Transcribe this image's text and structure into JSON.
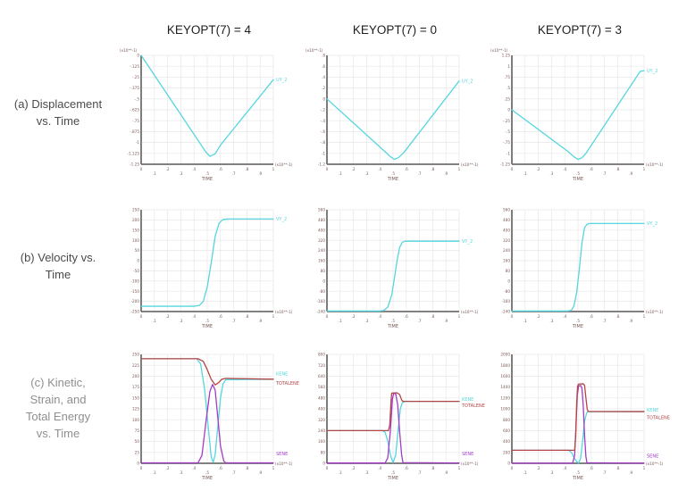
{
  "columns": [
    {
      "label": "KEYOPT(7) = 4"
    },
    {
      "label": "KEYOPT(7) = 0"
    },
    {
      "label": "KEYOPT(7) = 3"
    }
  ],
  "rows": [
    {
      "label": "(a) Displacement\nvs. Time"
    },
    {
      "label": "(b) Velocity vs.\nTime"
    },
    {
      "label": "(c) Kinetic,\nStrain, and\nTotal Energy\nvs. Time"
    }
  ],
  "colors": {
    "cyan": "#55d6de",
    "purple": "#a13cc6",
    "red": "#b64545",
    "axis": "#6f6f6f",
    "grid": "#e7e7e7",
    "tick_text": "#7b5a55",
    "header_text": "#1f1f1f",
    "row_label": "#4a4a4a",
    "row_label_c": "#8f8f8f"
  },
  "chart_data": [
    {
      "id": "a1",
      "type": "line",
      "title": "",
      "xlabel": "TIME",
      "ylabel": "",
      "x_multiplier": "(x10**-1)",
      "y_multiplier": "(x10**-1)",
      "xlim": [
        0,
        1
      ],
      "ylim": [
        -1.25,
        0
      ],
      "x_ticks": [
        "0",
        ".1",
        ".2",
        ".3",
        ".4",
        ".5",
        ".6",
        ".7",
        ".8",
        ".9",
        "1"
      ],
      "y_ticks": [
        "0",
        "-.125",
        "-.25",
        "-.375",
        "-.5",
        "-.625",
        "-.75",
        "-.875",
        "-1",
        "-1.125",
        "-1.25"
      ],
      "series": [
        {
          "name": "UY_2",
          "color": "cyan",
          "legend_y": -0.28,
          "points": [
            [
              0,
              0
            ],
            [
              0.45,
              -1.02
            ],
            [
              0.49,
              -1.11
            ],
            [
              0.52,
              -1.16
            ],
            [
              0.56,
              -1.13
            ],
            [
              0.6,
              -1.03
            ],
            [
              1,
              -0.28
            ]
          ]
        }
      ]
    },
    {
      "id": "a2",
      "type": "line",
      "title": "",
      "xlabel": "TIME",
      "ylabel": "",
      "x_multiplier": "(x10**-1)",
      "y_multiplier": "(x10**-1)",
      "xlim": [
        0,
        1
      ],
      "ylim": [
        -1.2,
        0.8
      ],
      "x_ticks": [
        "0",
        ".1",
        ".2",
        ".3",
        ".4",
        ".5",
        ".6",
        ".7",
        ".8",
        ".9",
        "1"
      ],
      "y_ticks": [
        ".8",
        ".6",
        ".4",
        ".2",
        "0",
        "-.2",
        "-.4",
        "-.6",
        "-.8",
        "-1",
        "-1.2"
      ],
      "series": [
        {
          "name": "UY_2",
          "color": "cyan",
          "legend_y": 0.33,
          "points": [
            [
              0,
              0
            ],
            [
              0.44,
              -0.97
            ],
            [
              0.48,
              -1.06
            ],
            [
              0.51,
              -1.11
            ],
            [
              0.54,
              -1.08
            ],
            [
              0.58,
              -0.99
            ],
            [
              1,
              0.33
            ]
          ]
        }
      ]
    },
    {
      "id": "a3",
      "type": "line",
      "title": "",
      "xlabel": "TIME",
      "ylabel": "",
      "x_multiplier": "(x10**-1)",
      "y_multiplier": "(x10**-1)",
      "xlim": [
        0,
        1
      ],
      "ylim": [
        -1.25,
        1.25
      ],
      "x_ticks": [
        "0",
        ".1",
        ".2",
        ".3",
        ".4",
        ".5",
        ".6",
        ".7",
        ".8",
        ".9",
        "1"
      ],
      "y_ticks": [
        "1.25",
        "1",
        ".75",
        ".5",
        ".25",
        "0",
        "-.25",
        "-.5",
        "-.75",
        "-1",
        "-1.25"
      ],
      "series": [
        {
          "name": "UY_2",
          "color": "cyan",
          "legend_y": 0.9,
          "points": [
            [
              0,
              0
            ],
            [
              0.43,
              -0.97
            ],
            [
              0.47,
              -1.08
            ],
            [
              0.5,
              -1.14
            ],
            [
              0.53,
              -1.1
            ],
            [
              0.56,
              -1.0
            ],
            [
              0.97,
              0.88
            ],
            [
              1,
              0.9
            ]
          ]
        }
      ]
    },
    {
      "id": "b1",
      "type": "line",
      "title": "",
      "xlabel": "TIME",
      "ylabel": "",
      "x_multiplier": "(x10**-1)",
      "y_multiplier": "",
      "xlim": [
        0,
        1
      ],
      "ylim": [
        -250,
        250
      ],
      "x_ticks": [
        "0",
        ".1",
        ".2",
        ".3",
        ".4",
        ".5",
        ".6",
        ".7",
        ".8",
        ".9",
        "1"
      ],
      "y_ticks": [
        "250",
        "200",
        "150",
        "100",
        "50",
        "0",
        "-50",
        "-100",
        "-150",
        "-200",
        "-250"
      ],
      "series": [
        {
          "name": "VY_2",
          "color": "cyan",
          "legend_y": 205,
          "points": [
            [
              0,
              -224
            ],
            [
              0.4,
              -224
            ],
            [
              0.44,
              -220
            ],
            [
              0.47,
              -200
            ],
            [
              0.5,
              -130
            ],
            [
              0.53,
              -10
            ],
            [
              0.56,
              120
            ],
            [
              0.59,
              185
            ],
            [
              0.62,
              202
            ],
            [
              0.66,
              205
            ],
            [
              1,
              205
            ]
          ]
        }
      ]
    },
    {
      "id": "b2",
      "type": "line",
      "title": "",
      "xlabel": "TIME",
      "ylabel": "",
      "x_multiplier": "(x10**-1)",
      "y_multiplier": "",
      "xlim": [
        0,
        1
      ],
      "ylim": [
        -240,
        560
      ],
      "x_ticks": [
        "0",
        ".1",
        ".2",
        ".3",
        ".4",
        ".5",
        ".6",
        ".7",
        ".8",
        ".9",
        "1"
      ],
      "y_ticks": [
        "560",
        "480",
        "400",
        "320",
        "240",
        "160",
        "80",
        "0",
        "-80",
        "-160",
        "-240"
      ],
      "series": [
        {
          "name": "VY_2",
          "color": "cyan",
          "legend_y": 313,
          "points": [
            [
              0,
              -236
            ],
            [
              0.4,
              -236
            ],
            [
              0.43,
              -231
            ],
            [
              0.46,
              -205
            ],
            [
              0.49,
              -110
            ],
            [
              0.51,
              20
            ],
            [
              0.53,
              160
            ],
            [
              0.55,
              265
            ],
            [
              0.57,
              305
            ],
            [
              0.59,
              313
            ],
            [
              1,
              313
            ]
          ]
        }
      ]
    },
    {
      "id": "b3",
      "type": "line",
      "title": "",
      "xlabel": "TIME",
      "ylabel": "",
      "x_multiplier": "(x10**-1)",
      "y_multiplier": "",
      "xlim": [
        0,
        1
      ],
      "ylim": [
        -240,
        560
      ],
      "x_ticks": [
        "0",
        ".1",
        ".2",
        ".3",
        ".4",
        ".5",
        ".6",
        ".7",
        ".8",
        ".9",
        "1"
      ],
      "y_ticks": [
        "560",
        "480",
        "400",
        "320",
        "240",
        "160",
        "80",
        "0",
        "-80",
        "-160",
        "-240"
      ],
      "series": [
        {
          "name": "VY_2",
          "color": "cyan",
          "legend_y": 452,
          "points": [
            [
              0,
              -236
            ],
            [
              0.42,
              -236
            ],
            [
              0.45,
              -230
            ],
            [
              0.47,
              -195
            ],
            [
              0.49,
              -90
            ],
            [
              0.51,
              90
            ],
            [
              0.53,
              300
            ],
            [
              0.55,
              420
            ],
            [
              0.57,
              448
            ],
            [
              0.59,
              452
            ],
            [
              1,
              452
            ]
          ]
        }
      ]
    },
    {
      "id": "c1",
      "type": "line",
      "title": "",
      "xlabel": "TIME",
      "ylabel": "",
      "x_multiplier": "(x10**-1)",
      "y_multiplier": "",
      "xlim": [
        0,
        1
      ],
      "ylim": [
        0,
        250
      ],
      "x_ticks": [
        "0",
        ".1",
        ".2",
        ".3",
        ".4",
        ".5",
        ".6",
        ".7",
        ".8",
        ".9",
        "1"
      ],
      "y_ticks": [
        "250",
        "225",
        "200",
        "175",
        "150",
        "125",
        "100",
        "75",
        "50",
        "25",
        "0"
      ],
      "series": [
        {
          "name": "KENE",
          "color": "cyan",
          "legend_y": 206,
          "points": [
            [
              0,
              240
            ],
            [
              0.42,
              240
            ],
            [
              0.45,
              228
            ],
            [
              0.48,
              170
            ],
            [
              0.51,
              75
            ],
            [
              0.53,
              15
            ],
            [
              0.545,
              2
            ],
            [
              0.56,
              20
            ],
            [
              0.58,
              85
            ],
            [
              0.6,
              150
            ],
            [
              0.62,
              183
            ],
            [
              0.64,
              192
            ],
            [
              1,
              193
            ]
          ]
        },
        {
          "name": "SENE",
          "color": "purple",
          "legend_y": 22,
          "points": [
            [
              0,
              1
            ],
            [
              0.43,
              1
            ],
            [
              0.46,
              18
            ],
            [
              0.49,
              95
            ],
            [
              0.52,
              165
            ],
            [
              0.54,
              181
            ],
            [
              0.56,
              168
            ],
            [
              0.58,
              105
            ],
            [
              0.6,
              40
            ],
            [
              0.625,
              5
            ],
            [
              0.64,
              1
            ],
            [
              1,
              1
            ]
          ]
        },
        {
          "name": "TOTALENE",
          "color": "red",
          "legend_y": 184,
          "points": [
            [
              0,
              240
            ],
            [
              0.43,
              240
            ],
            [
              0.47,
              234
            ],
            [
              0.5,
              215
            ],
            [
              0.53,
              193
            ],
            [
              0.56,
              180
            ],
            [
              0.585,
              185
            ],
            [
              0.61,
              193
            ],
            [
              0.64,
              195
            ],
            [
              1,
              193
            ]
          ]
        }
      ]
    },
    {
      "id": "c2",
      "type": "line",
      "title": "",
      "xlabel": "TIME",
      "ylabel": "",
      "x_multiplier": "(x10**-1)",
      "y_multiplier": "",
      "xlim": [
        0,
        1
      ],
      "ylim": [
        0,
        800
      ],
      "x_ticks": [
        "0",
        ".1",
        ".2",
        ".3",
        ".4",
        ".5",
        ".6",
        ".7",
        ".8",
        ".9",
        "1"
      ],
      "y_ticks": [
        "800",
        "720",
        "640",
        "560",
        "480",
        "400",
        "320",
        "240",
        "160",
        "80",
        "0"
      ],
      "series": [
        {
          "name": "KENE",
          "color": "cyan",
          "legend_y": 472,
          "points": [
            [
              0,
              240
            ],
            [
              0.42,
              240
            ],
            [
              0.44,
              228
            ],
            [
              0.46,
              160
            ],
            [
              0.48,
              60
            ],
            [
              0.5,
              5
            ],
            [
              0.52,
              60
            ],
            [
              0.54,
              260
            ],
            [
              0.555,
              400
            ],
            [
              0.57,
              445
            ],
            [
              0.59,
              455
            ],
            [
              1,
              455
            ]
          ]
        },
        {
          "name": "SENE",
          "color": "purple",
          "legend_y": 72,
          "points": [
            [
              0,
              2
            ],
            [
              0.44,
              2
            ],
            [
              0.46,
              40
            ],
            [
              0.48,
              240
            ],
            [
              0.495,
              470
            ],
            [
              0.505,
              515
            ],
            [
              0.52,
              510
            ],
            [
              0.535,
              430
            ],
            [
              0.55,
              230
            ],
            [
              0.565,
              60
            ],
            [
              0.575,
              5
            ],
            [
              1,
              2
            ]
          ]
        },
        {
          "name": "TOTALENE",
          "color": "red",
          "legend_y": 425,
          "points": [
            [
              0,
              240
            ],
            [
              0.465,
              240
            ],
            [
              0.475,
              280
            ],
            [
              0.485,
              460
            ],
            [
              0.49,
              515
            ],
            [
              0.53,
              518
            ],
            [
              0.55,
              505
            ],
            [
              0.565,
              465
            ],
            [
              0.575,
              455
            ],
            [
              1,
              455
            ]
          ]
        }
      ]
    },
    {
      "id": "c3",
      "type": "line",
      "title": "",
      "xlabel": "TIME",
      "ylabel": "",
      "x_multiplier": "(x10**-1)",
      "y_multiplier": "",
      "xlim": [
        0,
        1
      ],
      "ylim": [
        0,
        2000
      ],
      "x_ticks": [
        "0",
        ".1",
        ".2",
        ".3",
        ".4",
        ".5",
        ".6",
        ".7",
        ".8",
        ".9",
        "1"
      ],
      "y_ticks": [
        "2000",
        "1800",
        "1600",
        "1400",
        "1200",
        "1000",
        "800",
        "600",
        "400",
        "200",
        "0"
      ],
      "series": [
        {
          "name": "KENE",
          "color": "cyan",
          "legend_y": 980,
          "points": [
            [
              0,
              240
            ],
            [
              0.43,
              240
            ],
            [
              0.45,
              200
            ],
            [
              0.47,
              110
            ],
            [
              0.49,
              30
            ],
            [
              0.505,
              5
            ],
            [
              0.52,
              90
            ],
            [
              0.535,
              400
            ],
            [
              0.55,
              780
            ],
            [
              0.565,
              920
            ],
            [
              0.575,
              948
            ],
            [
              1,
              950
            ]
          ]
        },
        {
          "name": "SENE",
          "color": "purple",
          "legend_y": 140,
          "points": [
            [
              0,
              2
            ],
            [
              0.46,
              2
            ],
            [
              0.475,
              150
            ],
            [
              0.485,
              700
            ],
            [
              0.495,
              1250
            ],
            [
              0.505,
              1420
            ],
            [
              0.52,
              1430
            ],
            [
              0.53,
              1380
            ],
            [
              0.54,
              1050
            ],
            [
              0.55,
              500
            ],
            [
              0.56,
              120
            ],
            [
              0.568,
              10
            ],
            [
              1,
              2
            ]
          ]
        },
        {
          "name": "TOTALENE",
          "color": "red",
          "legend_y": 840,
          "points": [
            [
              0,
              240
            ],
            [
              0.475,
              240
            ],
            [
              0.483,
              500
            ],
            [
              0.49,
              1100
            ],
            [
              0.497,
              1420
            ],
            [
              0.505,
              1455
            ],
            [
              0.54,
              1460
            ],
            [
              0.55,
              1430
            ],
            [
              0.56,
              1200
            ],
            [
              0.57,
              990
            ],
            [
              0.578,
              952
            ],
            [
              1,
              950
            ]
          ]
        }
      ]
    }
  ]
}
